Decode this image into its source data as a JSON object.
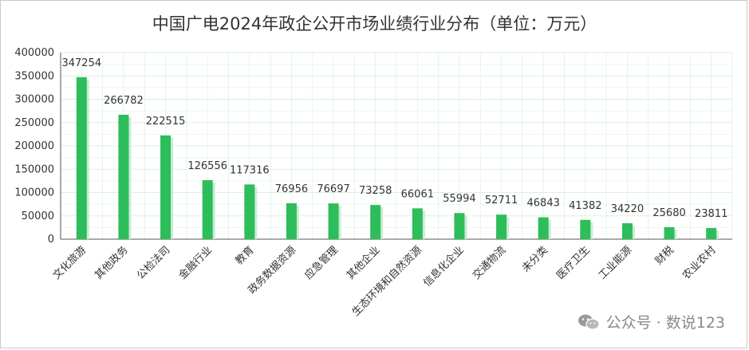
{
  "chart_data": {
    "type": "bar",
    "title": "中国广电2024年政企公开市场业绩行业分布（单位：万元）",
    "categories": [
      "文化旅游",
      "其他政务",
      "公检法司",
      "金融行业",
      "教育",
      "政务数据资源",
      "应急管理",
      "其他企业",
      "生态环境和自然资源",
      "信息化企业",
      "交通物流",
      "未分类",
      "医疗卫生",
      "工业能源",
      "财税",
      "农业农村"
    ],
    "values": [
      347254,
      266782,
      222515,
      126556,
      117316,
      76956,
      76697,
      73258,
      66061,
      55994,
      52711,
      46843,
      41382,
      34220,
      25680,
      23811
    ],
    "ylim": [
      0,
      400000
    ],
    "yticks": [
      0,
      50000,
      100000,
      150000,
      200000,
      250000,
      300000,
      350000,
      400000
    ],
    "grid": true,
    "bar_color": "#2dbd5a",
    "grid_color": "#d9f2e0"
  },
  "watermark": {
    "text": "公众号 · 数说123",
    "icon": "wechat-icon"
  }
}
